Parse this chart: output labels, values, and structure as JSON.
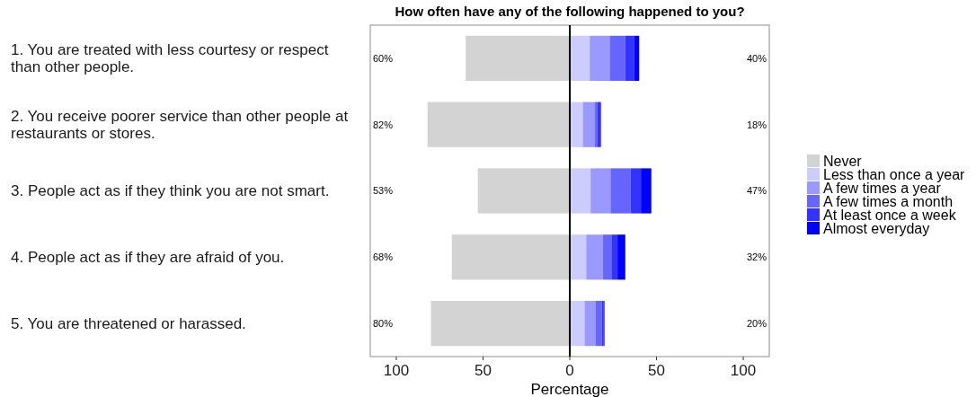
{
  "chart_data": {
    "type": "bar",
    "orientation": "horizontal",
    "stacked": true,
    "title": "How often have any of the following happened to you?",
    "xlabel": "Percentage",
    "categories": [
      "1. You are treated with less courtesy or respect than other people.",
      "2. You receive poorer service than other people at restaurants or stores.",
      "3. People act as if they think you are not smart.",
      "4. People act as if they are afraid of you.",
      "5. You are threatened or harassed."
    ],
    "series": [
      {
        "name": "Never",
        "color": "#d3d3d3",
        "values": [
          -60,
          -82,
          -53,
          -68,
          -80
        ]
      },
      {
        "name": "Less than once a year",
        "color": "#ccccff",
        "values": [
          11.5,
          7.5,
          12,
          9.5,
          8.5
        ]
      },
      {
        "name": "A few times a year",
        "color": "#9999ff",
        "values": [
          11.5,
          7,
          11.5,
          9.5,
          6.5
        ]
      },
      {
        "name": "A few times a month",
        "color": "#6666ff",
        "values": [
          9,
          1.5,
          11.5,
          5,
          3.5
        ]
      },
      {
        "name": "At least once a week",
        "color": "#3333ff",
        "values": [
          5,
          2,
          6,
          3.5,
          1
        ]
      },
      {
        "name": "Almost everyday",
        "color": "#0000ff",
        "values": [
          3,
          0,
          6,
          4.5,
          0.5
        ]
      }
    ],
    "annotations": [
      "60%",
      "82%",
      "53%",
      "68%",
      "80%",
      "40%",
      "18%",
      "47%",
      "32%",
      "20%"
    ],
    "xlim": [
      -115,
      115
    ],
    "xticks": [
      {
        "value": -100,
        "label": "100"
      },
      {
        "value": -50,
        "label": "50"
      },
      0,
      50,
      100
    ],
    "ref_lines": [
      {
        "axis": "x",
        "value": 0,
        "color": "#000000"
      }
    ],
    "grid": false,
    "legend": "right"
  }
}
